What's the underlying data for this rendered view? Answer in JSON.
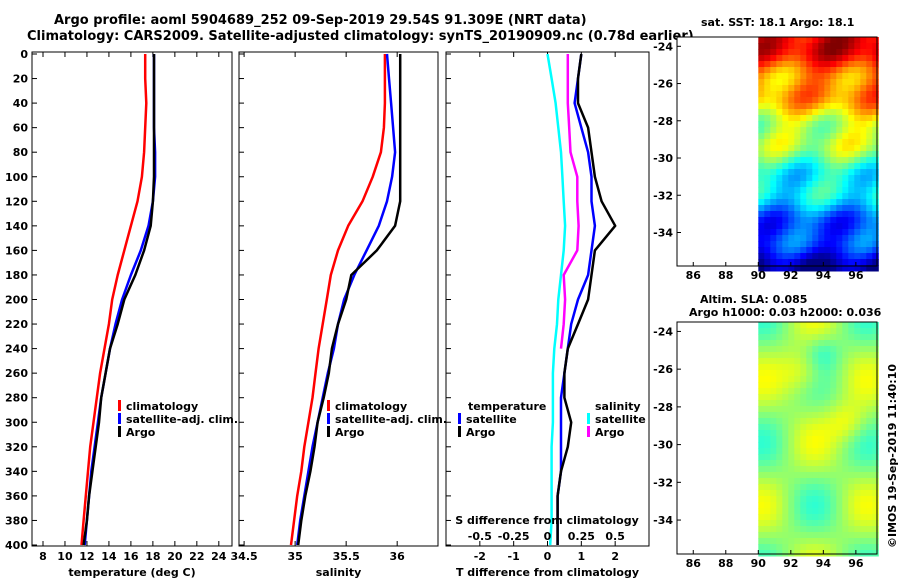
{
  "header": {
    "line1": "Argo profile: aoml 5904689_252 09-Sep-2019 29.54S 91.309E (NRT data)",
    "line2": "Climatology: CARS2009. Satellite-adjusted climatology: synTS_20190909.nc (0.78d earlier)"
  },
  "colors": {
    "climatology": "#ff0000",
    "satellite": "#0000ff",
    "argo": "#000000",
    "salinity_sat": "#00ffff",
    "salinity_argo": "#ff00ff"
  },
  "depth_ticks": [
    "0",
    "20",
    "40",
    "60",
    "80",
    "100",
    "120",
    "140",
    "160",
    "180",
    "200",
    "220",
    "240",
    "260",
    "280",
    "300",
    "320",
    "340",
    "360",
    "380",
    "400"
  ],
  "chart_data": [
    {
      "type": "line",
      "title": "",
      "xlabel": "temperature (deg C)",
      "ylabel": "depth",
      "xlim": [
        7,
        25.2
      ],
      "ylim": [
        400,
        0
      ],
      "xticks": [
        "8",
        "10",
        "12",
        "14",
        "16",
        "18",
        "20",
        "22",
        "24"
      ],
      "legend": {
        "position": "bottom-center",
        "entries": [
          "climatology",
          "satellite-adj. clim.",
          "Argo"
        ]
      },
      "series": [
        {
          "name": "climatology",
          "color": "#ff0000",
          "x": [
            17.3,
            17.3,
            17.4,
            17.3,
            17.2,
            17.0,
            16.6,
            16.0,
            15.4,
            14.8,
            14.3,
            14.0,
            13.6,
            13.2,
            12.9,
            12.6,
            12.3,
            12.1,
            11.9,
            11.7,
            11.5
          ],
          "y": [
            0,
            20,
            40,
            60,
            80,
            100,
            120,
            140,
            160,
            180,
            200,
            220,
            240,
            260,
            280,
            300,
            320,
            340,
            360,
            380,
            400
          ]
        },
        {
          "name": "satellite-adj. clim.",
          "color": "#0000ff",
          "x": [
            18.1,
            18.1,
            18.1,
            18.1,
            18.2,
            18.2,
            18.0,
            17.6,
            16.9,
            16.0,
            15.2,
            14.6,
            14.1,
            13.7,
            13.3,
            13.0,
            12.7,
            12.4,
            12.2,
            12.0,
            11.8
          ],
          "y": [
            0,
            20,
            40,
            60,
            80,
            100,
            120,
            140,
            160,
            180,
            200,
            220,
            240,
            260,
            280,
            300,
            320,
            340,
            360,
            380,
            400
          ]
        },
        {
          "name": "Argo",
          "color": "#000000",
          "x": [
            18.1,
            18.1,
            18.1,
            18.1,
            18.1,
            18.1,
            18.0,
            17.8,
            17.2,
            16.4,
            15.4,
            14.8,
            14.1,
            13.7,
            13.3,
            13.1,
            12.8,
            12.5,
            12.2,
            12.0,
            11.7
          ],
          "y": [
            0,
            20,
            40,
            60,
            80,
            100,
            120,
            140,
            160,
            180,
            200,
            220,
            240,
            260,
            280,
            300,
            320,
            340,
            360,
            380,
            400
          ]
        }
      ]
    },
    {
      "type": "line",
      "title": "",
      "xlabel": "salinity",
      "ylabel": "depth",
      "xlim": [
        34.45,
        36.4
      ],
      "ylim": [
        400,
        0
      ],
      "xticks": [
        "34.5",
        "35",
        "35.5",
        "36"
      ],
      "legend": {
        "position": "bottom-center",
        "entries": [
          "climatology",
          "satellite-adj. clim.",
          "Argo"
        ]
      },
      "series": [
        {
          "name": "climatology",
          "color": "#ff0000",
          "x": [
            35.88,
            35.88,
            35.88,
            35.87,
            35.84,
            35.76,
            35.66,
            35.52,
            35.42,
            35.35,
            35.31,
            35.27,
            35.23,
            35.2,
            35.17,
            35.13,
            35.09,
            35.06,
            35.02,
            34.99,
            34.96
          ],
          "y": [
            0,
            20,
            40,
            60,
            80,
            100,
            120,
            140,
            160,
            180,
            200,
            220,
            240,
            260,
            280,
            300,
            320,
            340,
            360,
            380,
            400
          ]
        },
        {
          "name": "satellite-adj. clim.",
          "color": "#0000ff",
          "x": [
            35.9,
            35.92,
            35.94,
            35.96,
            35.98,
            35.95,
            35.9,
            35.82,
            35.7,
            35.58,
            35.48,
            35.42,
            35.38,
            35.32,
            35.27,
            35.22,
            35.17,
            35.13,
            35.09,
            35.05,
            35.02
          ],
          "y": [
            0,
            20,
            40,
            60,
            80,
            100,
            120,
            140,
            160,
            180,
            200,
            220,
            240,
            260,
            280,
            300,
            320,
            340,
            360,
            380,
            400
          ]
        },
        {
          "name": "Argo",
          "color": "#000000",
          "x": [
            36.03,
            36.03,
            36.03,
            36.03,
            36.03,
            36.03,
            36.03,
            35.98,
            35.8,
            35.55,
            35.5,
            35.42,
            35.36,
            35.33,
            35.28,
            35.22,
            35.19,
            35.15,
            35.1,
            35.06,
            35.03
          ],
          "y": [
            0,
            20,
            40,
            60,
            80,
            100,
            120,
            140,
            160,
            180,
            200,
            220,
            240,
            260,
            280,
            300,
            320,
            340,
            360,
            380,
            400
          ]
        }
      ]
    },
    {
      "type": "line",
      "title": "",
      "xlabel": "T difference from climatology",
      "xlabel_top": "S difference from climatology",
      "ylabel": "depth",
      "xlim": [
        -3.0,
        3.0
      ],
      "ylim": [
        400,
        0
      ],
      "xticks": [
        "-2",
        "-1",
        "0",
        "1",
        "2"
      ],
      "xticks_top": [
        "-0.5",
        "-0.25",
        "0",
        "0.25",
        "0.5"
      ],
      "legend": {
        "position": "bottom",
        "temperature_title": "temperature",
        "salinity_title": "salinity",
        "temperature_entries": [
          "satellite",
          "Argo"
        ],
        "salinity_entries": [
          "satellite",
          "Argo"
        ]
      },
      "series": [
        {
          "name": "temperature satellite",
          "color": "#0000ff",
          "x": [
            1.0,
            0.9,
            0.8,
            1.0,
            1.2,
            1.3,
            1.3,
            1.4,
            1.3,
            1.2,
            0.9,
            0.7,
            0.6,
            0.5,
            0.4,
            0.4,
            0.4,
            0.4,
            0.3,
            0.3,
            0.3
          ],
          "y": [
            0,
            20,
            40,
            60,
            80,
            100,
            120,
            140,
            160,
            180,
            200,
            220,
            240,
            260,
            280,
            300,
            320,
            340,
            360,
            380,
            400
          ]
        },
        {
          "name": "temperature Argo",
          "color": "#000000",
          "x": [
            1.0,
            0.9,
            0.9,
            1.2,
            1.3,
            1.4,
            1.6,
            2.0,
            1.4,
            1.3,
            1.2,
            0.9,
            0.6,
            0.5,
            0.5,
            0.7,
            0.6,
            0.4,
            0.3,
            0.3,
            0.3
          ],
          "y": [
            0,
            20,
            40,
            60,
            80,
            100,
            120,
            140,
            160,
            180,
            200,
            220,
            240,
            260,
            280,
            300,
            320,
            340,
            360,
            380,
            400
          ]
        },
        {
          "name": "salinity satellite",
          "color": "#00ffff",
          "x": [
            0.0,
            0.03,
            0.06,
            0.08,
            0.1,
            0.11,
            0.12,
            0.13,
            0.12,
            0.1,
            0.08,
            0.07,
            0.05,
            0.04,
            0.04,
            0.04,
            0.03,
            0.03,
            0.03,
            0.03,
            0.02
          ],
          "y": [
            0,
            20,
            40,
            60,
            80,
            100,
            120,
            140,
            160,
            180,
            200,
            220,
            240,
            260,
            280,
            300,
            320,
            340,
            360,
            380,
            400
          ]
        },
        {
          "name": "salinity Argo",
          "color": "#ff00ff",
          "x": [
            0.15,
            0.15,
            0.15,
            0.16,
            0.17,
            0.22,
            0.22,
            0.23,
            0.22,
            0.12,
            0.13,
            0.12,
            0.1,
            null,
            null,
            null,
            null,
            null,
            null,
            null,
            null
          ],
          "y": [
            0,
            20,
            40,
            60,
            80,
            100,
            120,
            140,
            160,
            180,
            200,
            220,
            240,
            260,
            280,
            300,
            320,
            340,
            360,
            380,
            400
          ]
        }
      ]
    }
  ],
  "maps": [
    {
      "title": "sat. SST: 18.1 Argo: 18.1",
      "xticks": [
        "86",
        "88",
        "90",
        "92",
        "94",
        "96"
      ],
      "yticks": [
        "-24",
        "-26",
        "-28",
        "-30",
        "-32",
        "-34"
      ],
      "xlim": [
        85,
        97.3
      ],
      "ylim": [
        -35.8,
        -23.5
      ],
      "data_xmin": 90,
      "colormap": "jet",
      "field": "sst"
    },
    {
      "title1": "Altim. SLA: 0.085",
      "title2": "Argo h1000: 0.03 h2000: 0.036",
      "xticks": [
        "86",
        "88",
        "90",
        "92",
        "94",
        "96"
      ],
      "yticks": [
        "-24",
        "-26",
        "-28",
        "-30",
        "-32",
        "-34"
      ],
      "xlim": [
        85,
        97.3
      ],
      "ylim": [
        -35.8,
        -23.5
      ],
      "data_xmin": 90,
      "colormap": "jet",
      "field": "sla"
    }
  ],
  "credit": "©IMOS 19-Sep-2019 11:40:10"
}
